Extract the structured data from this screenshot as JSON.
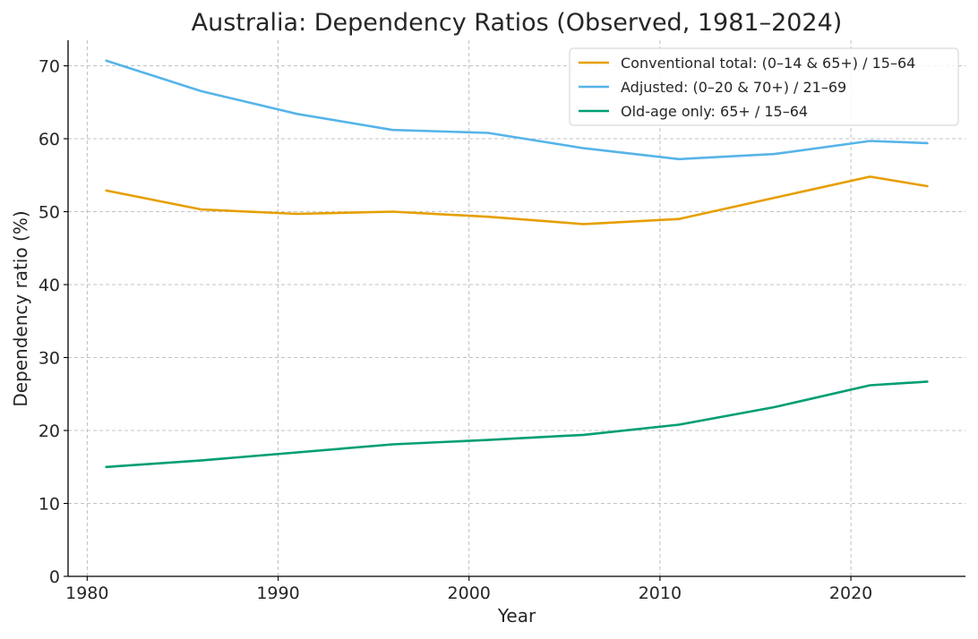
{
  "chart_data": {
    "type": "line",
    "title": "Australia: Dependency Ratios (Observed, 1981–2024)",
    "xlabel": "Year",
    "ylabel": "Dependency ratio (%)",
    "xlim": [
      1979,
      2026
    ],
    "ylim": [
      0,
      73.5
    ],
    "xticks": [
      1980,
      1990,
      2000,
      2010,
      2020
    ],
    "yticks": [
      0,
      10,
      20,
      30,
      40,
      50,
      60,
      70
    ],
    "grid": true,
    "legend_position": "top-right",
    "x": [
      1981,
      1986,
      1991,
      1996,
      2001,
      2006,
      2011,
      2016,
      2021,
      2024
    ],
    "series": [
      {
        "name": "Conventional total: (0–14 & 65+) / 15–64",
        "color": "#E69F00",
        "values": [
          52.9,
          50.3,
          49.7,
          50.0,
          49.3,
          48.3,
          49.0,
          51.9,
          54.8,
          53.5
        ]
      },
      {
        "name": "Adjusted: (0–20 & 70+) / 21–69",
        "color": "#56B4E9",
        "values": [
          70.7,
          66.5,
          63.4,
          61.2,
          60.8,
          58.7,
          57.2,
          57.9,
          59.7,
          59.4
        ]
      },
      {
        "name": "Old-age only: 65+ / 15–64",
        "color": "#009E73",
        "values": [
          15.0,
          15.9,
          17.0,
          18.1,
          18.7,
          19.4,
          20.8,
          23.2,
          26.2,
          26.7
        ]
      }
    ]
  }
}
